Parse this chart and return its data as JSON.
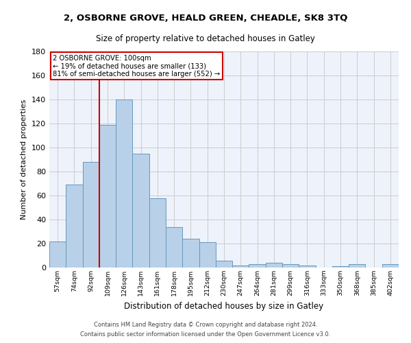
{
  "title_line1": "2, OSBORNE GROVE, HEALD GREEN, CHEADLE, SK8 3TQ",
  "title_line2": "Size of property relative to detached houses in Gatley",
  "xlabel": "Distribution of detached houses by size in Gatley",
  "ylabel": "Number of detached properties",
  "bar_labels": [
    "57sqm",
    "74sqm",
    "92sqm",
    "109sqm",
    "126sqm",
    "143sqm",
    "161sqm",
    "178sqm",
    "195sqm",
    "212sqm",
    "230sqm",
    "247sqm",
    "264sqm",
    "281sqm",
    "299sqm",
    "316sqm",
    "333sqm",
    "350sqm",
    "368sqm",
    "385sqm",
    "402sqm"
  ],
  "bar_values": [
    22,
    69,
    88,
    119,
    140,
    95,
    58,
    34,
    24,
    21,
    6,
    2,
    3,
    4,
    3,
    2,
    0,
    1,
    3,
    0,
    3
  ],
  "bar_color": "#b8d0e8",
  "bar_edge_color": "#6699bb",
  "grid_color": "#cccccc",
  "background_color": "#eef2fa",
  "annotation_line1": "2 OSBORNE GROVE: 100sqm",
  "annotation_line2": "← 19% of detached houses are smaller (133)",
  "annotation_line3": "81% of semi-detached houses are larger (552) →",
  "vline_color": "#cc0000",
  "box_edge_color": "#cc0000",
  "footer_line1": "Contains HM Land Registry data © Crown copyright and database right 2024.",
  "footer_line2": "Contains public sector information licensed under the Open Government Licence v3.0.",
  "ylim": [
    0,
    180
  ],
  "yticks": [
    0,
    20,
    40,
    60,
    80,
    100,
    120,
    140,
    160,
    180
  ],
  "vline_position": 2.5
}
